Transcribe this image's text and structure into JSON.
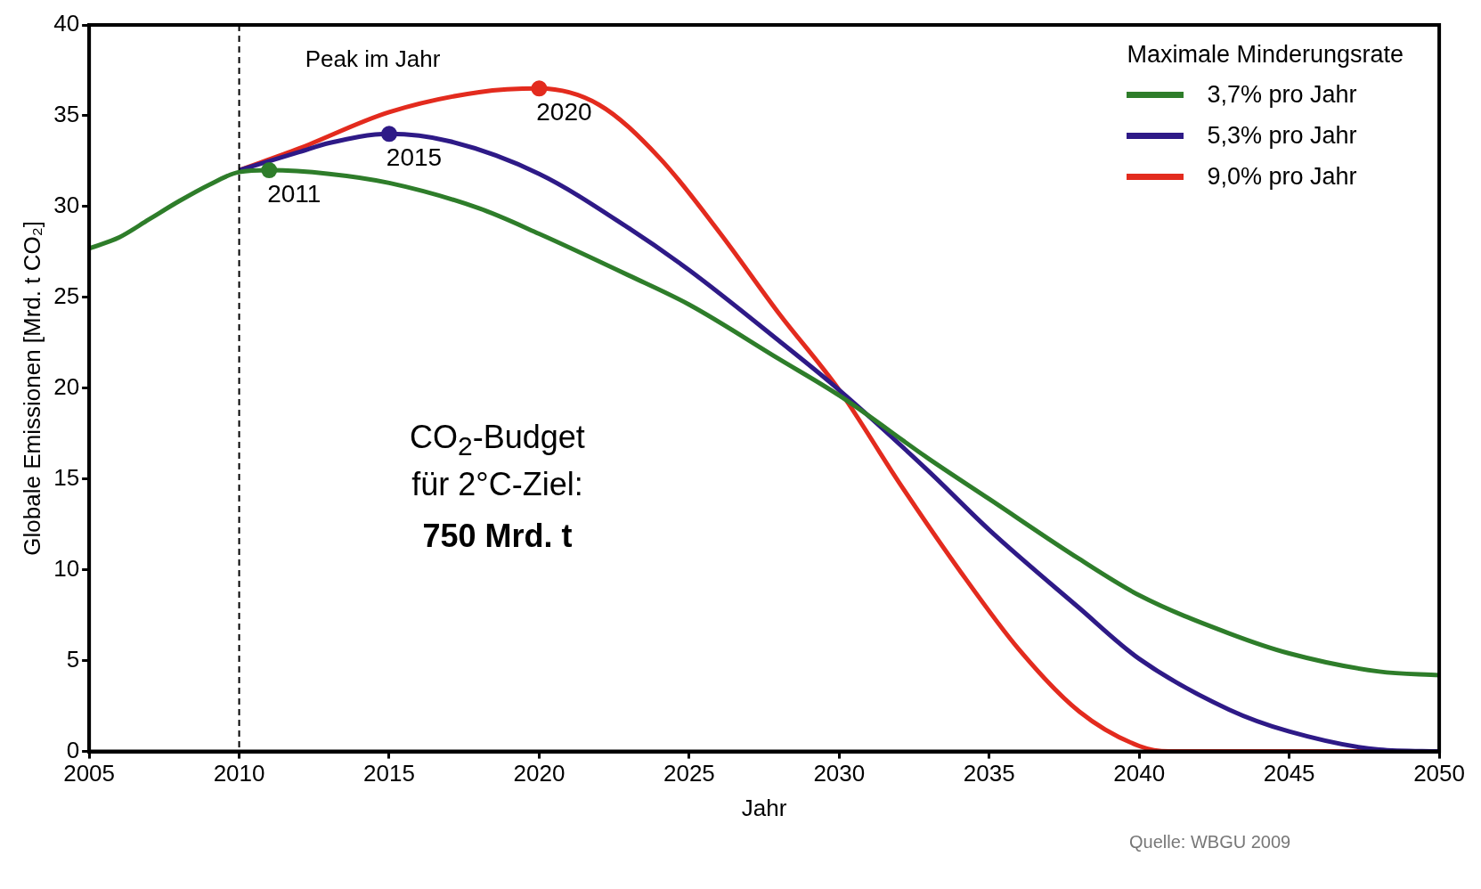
{
  "chart_data": {
    "type": "line",
    "xlabel": "Jahr",
    "ylabel": "Globale Emissionen [Mrd. t CO₂]",
    "legend_title": "Maximale Minderungsrate",
    "legend": "top right",
    "grid": false,
    "marker": "none",
    "line_style": "solid",
    "xlim": [
      2005,
      2050
    ],
    "xticks": [
      2005,
      2010,
      2015,
      2020,
      2025,
      2030,
      2035,
      2040,
      2045,
      2050
    ],
    "ylim": [
      0,
      40
    ],
    "yticks": [
      0,
      5,
      10,
      15,
      20,
      25,
      30,
      35,
      40
    ],
    "series": [
      {
        "name": "3,7% pro Jahr",
        "color": "#2e7d2a",
        "x": [
          2005,
          2006,
          2007,
          2008,
          2009,
          2010,
          2011,
          2013,
          2015,
          2018,
          2020,
          2023,
          2025,
          2028,
          2030,
          2033,
          2035,
          2038,
          2040,
          2043,
          2045,
          2048,
          2050
        ],
        "values": [
          27.7,
          28.3,
          29.3,
          30.3,
          31.2,
          31.9,
          32.0,
          31.8,
          31.3,
          29.9,
          28.5,
          26.2,
          24.6,
          21.6,
          19.6,
          16.1,
          13.9,
          10.6,
          8.6,
          6.5,
          5.4,
          4.4,
          4.2
        ]
      },
      {
        "name": "5,3% pro Jahr",
        "color": "#2e1a87",
        "x": [
          2010,
          2012,
          2013,
          2015,
          2017,
          2020,
          2023,
          2025,
          2028,
          2030,
          2033,
          2035,
          2038,
          2040,
          2043,
          2045,
          2048,
          2050
        ],
        "values": [
          32.0,
          33.0,
          33.5,
          34.0,
          33.6,
          31.8,
          28.8,
          26.5,
          22.6,
          19.9,
          15.4,
          12.2,
          7.9,
          5.1,
          2.3,
          1.1,
          0.1,
          0
        ]
      },
      {
        "name": "9,0% pro Jahr",
        "color": "#e32b1e",
        "x": [
          2010,
          2012,
          2015,
          2018,
          2020,
          2022,
          2024,
          2026,
          2028,
          2030,
          2032,
          2034,
          2036,
          2038,
          2040,
          2041,
          2050
        ],
        "values": [
          32.0,
          33.2,
          35.2,
          36.3,
          36.5,
          35.6,
          32.7,
          28.6,
          24.1,
          19.9,
          14.8,
          10.0,
          5.6,
          2.2,
          0.3,
          0,
          0
        ]
      },
      {
        "type": "scatter",
        "marker": "circle",
        "x": [
          2011,
          2015,
          2020
        ],
        "values": [
          32.0,
          34.0,
          36.5
        ],
        "colors": [
          "#2e7d2a",
          "#2e1a87",
          "#e32b1e"
        ]
      }
    ],
    "ref_lines": [
      {
        "axis": "x",
        "value": 2010,
        "color": "#000000",
        "line_style": "dashed"
      }
    ],
    "annotations": [
      {
        "text": "2011",
        "x": 2011,
        "y": 32.0
      },
      {
        "text": "2015",
        "x": 2015,
        "y": 34.0
      },
      {
        "text": "2020",
        "x": 2020,
        "y": 36.5
      },
      "Peak im Jahr",
      "CO$_{2}$-Budget\nfür 2°C-Ziel:",
      "750 Mrd. t",
      "Quelle: WBGU 2009"
    ]
  }
}
